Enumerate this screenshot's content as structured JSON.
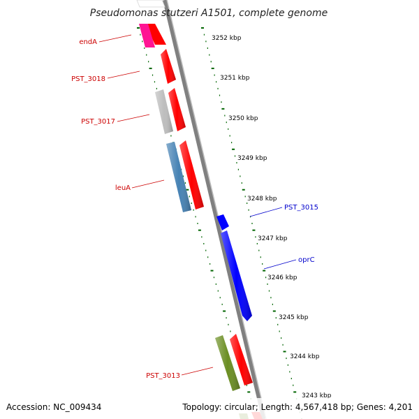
{
  "title": "Pseudomonas stutzeri A1501, complete genome",
  "footer": {
    "accession": "Accession: NC_009434",
    "info": "Topology: circular; Length: 4,567,418 bp; Genes: 4,201"
  },
  "ticks": [
    "3252 kbp",
    "3251 kbp",
    "3250 kbp",
    "3249 kbp",
    "3248 kbp",
    "3247 kbp",
    "3246 kbp",
    "3245 kbp",
    "3244 kbp",
    "3243 kbp"
  ],
  "genes": {
    "endA": "endA",
    "pst3018": "PST_3018",
    "pst3017": "PST_3017",
    "leuA": "leuA",
    "pst3015": "PST_3015",
    "oprC": "oprC",
    "pst3013": "PST_3013"
  },
  "colors": {
    "cds": "#ff0000",
    "endA": "#ff1493",
    "pst3017": "#bdbdbd",
    "leuA": "#4682b4",
    "forward": "#0000ff",
    "pst3013": "#6b8e23",
    "label_reverse": "#cc0000",
    "label_forward": "#0000cc",
    "ticks": "#006400"
  }
}
